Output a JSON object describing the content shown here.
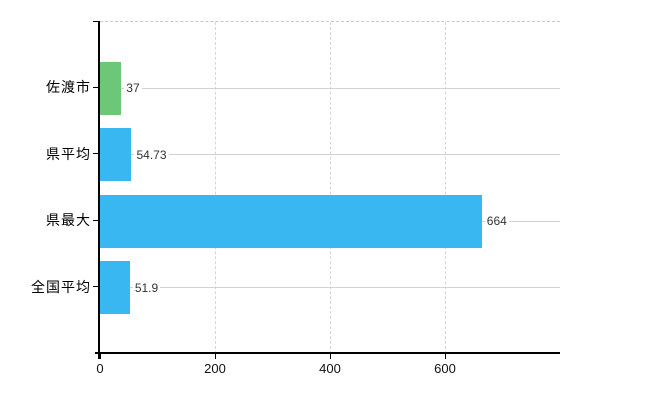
{
  "chart_data": {
    "type": "bar",
    "orientation": "horizontal",
    "title": "",
    "xlabel": "",
    "ylabel": "",
    "categories": [
      "佐渡市",
      "県平均",
      "県最大",
      "全国平均"
    ],
    "values": [
      37,
      54.73,
      664,
      51.9
    ],
    "value_labels": [
      "37",
      "54.73",
      "664",
      "51.9"
    ],
    "series": [
      {
        "name": "",
        "values": [
          37,
          54.73,
          664,
          51.9
        ]
      }
    ],
    "bar_colors": [
      "#6cc878",
      "#38b7f0",
      "#38b7f0",
      "#38b7f0"
    ],
    "xlim": [
      0,
      800
    ],
    "x_ticks": [
      0,
      200,
      400,
      600
    ],
    "x_tick_labels": [
      "0",
      "200",
      "400",
      "600"
    ],
    "grid": true,
    "legend": false
  },
  "colors": {
    "bar_green": "#6cc878",
    "bar_blue": "#38b7f0",
    "h_gridline": "#ccd6cc",
    "v_gridline": "#d6d6d6",
    "axis": "#000000",
    "value_text": "#333333",
    "label_text": "#000000",
    "background": "#ffffff"
  }
}
